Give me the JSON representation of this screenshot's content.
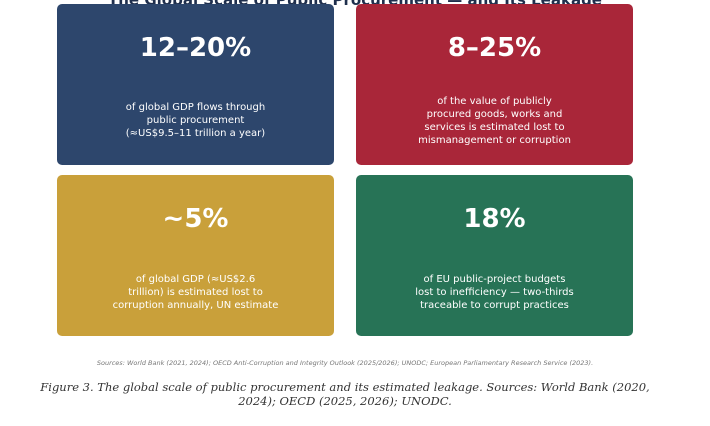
{
  "figure": {
    "title": "The Global Scale of Public Procurement — and Its Leakage",
    "cards": [
      {
        "value": "12–20%",
        "description": "of global GDP flows through\npublic procurement\n(≈US$9.5–11 trillion a year)",
        "color": "#2d466c"
      },
      {
        "value": "8–25%",
        "description": "of the value of publicly\nprocured goods, works and\nservices is estimated lost to\nmismanagement or corruption",
        "color": "#a92639"
      },
      {
        "value": "~5%",
        "description": "of global GDP (≈US$2.6\ntrillion) is estimated lost to\ncorruption annually, UN estimate",
        "color": "#c9a03a"
      },
      {
        "value": "18%",
        "description": "of EU public-project budgets\nlost to inefficiency — two-thirds\ntraceable to corrupt practices",
        "color": "#277356"
      }
    ],
    "sources": "Sources: World Bank (2021, 2024); OECD Anti-Corruption and Integrity Outlook (2025/2026); UNODC; European Parliamentary Research Service (2023).",
    "caption": "Figure 3. The global scale of public procurement and its estimated leakage. Sources: World Bank (2020, 2024); OECD (2025, 2026); UNODC."
  }
}
